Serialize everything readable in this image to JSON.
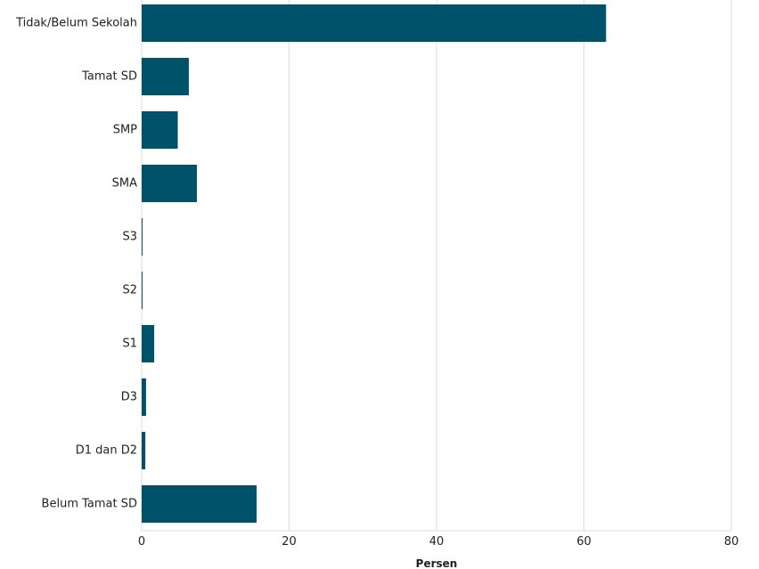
{
  "chart_data": {
    "type": "bar",
    "orientation": "horizontal",
    "categories": [
      "Tidak/Belum Sekolah",
      "Tamat SD",
      "SMP",
      "SMA",
      "S3",
      "S2",
      "S1",
      "D3",
      "D1 dan D2",
      "Belum Tamat SD"
    ],
    "values": [
      63.0,
      6.4,
      4.9,
      7.5,
      0.1,
      0.1,
      1.7,
      0.6,
      0.5,
      15.6
    ],
    "xlabel": "Persen",
    "ylabel": "",
    "xlim": [
      0,
      80
    ],
    "x_ticks": [
      "0",
      "20",
      "40",
      "60",
      "80"
    ],
    "grid": "vertical",
    "bar_color": "#00526b"
  }
}
